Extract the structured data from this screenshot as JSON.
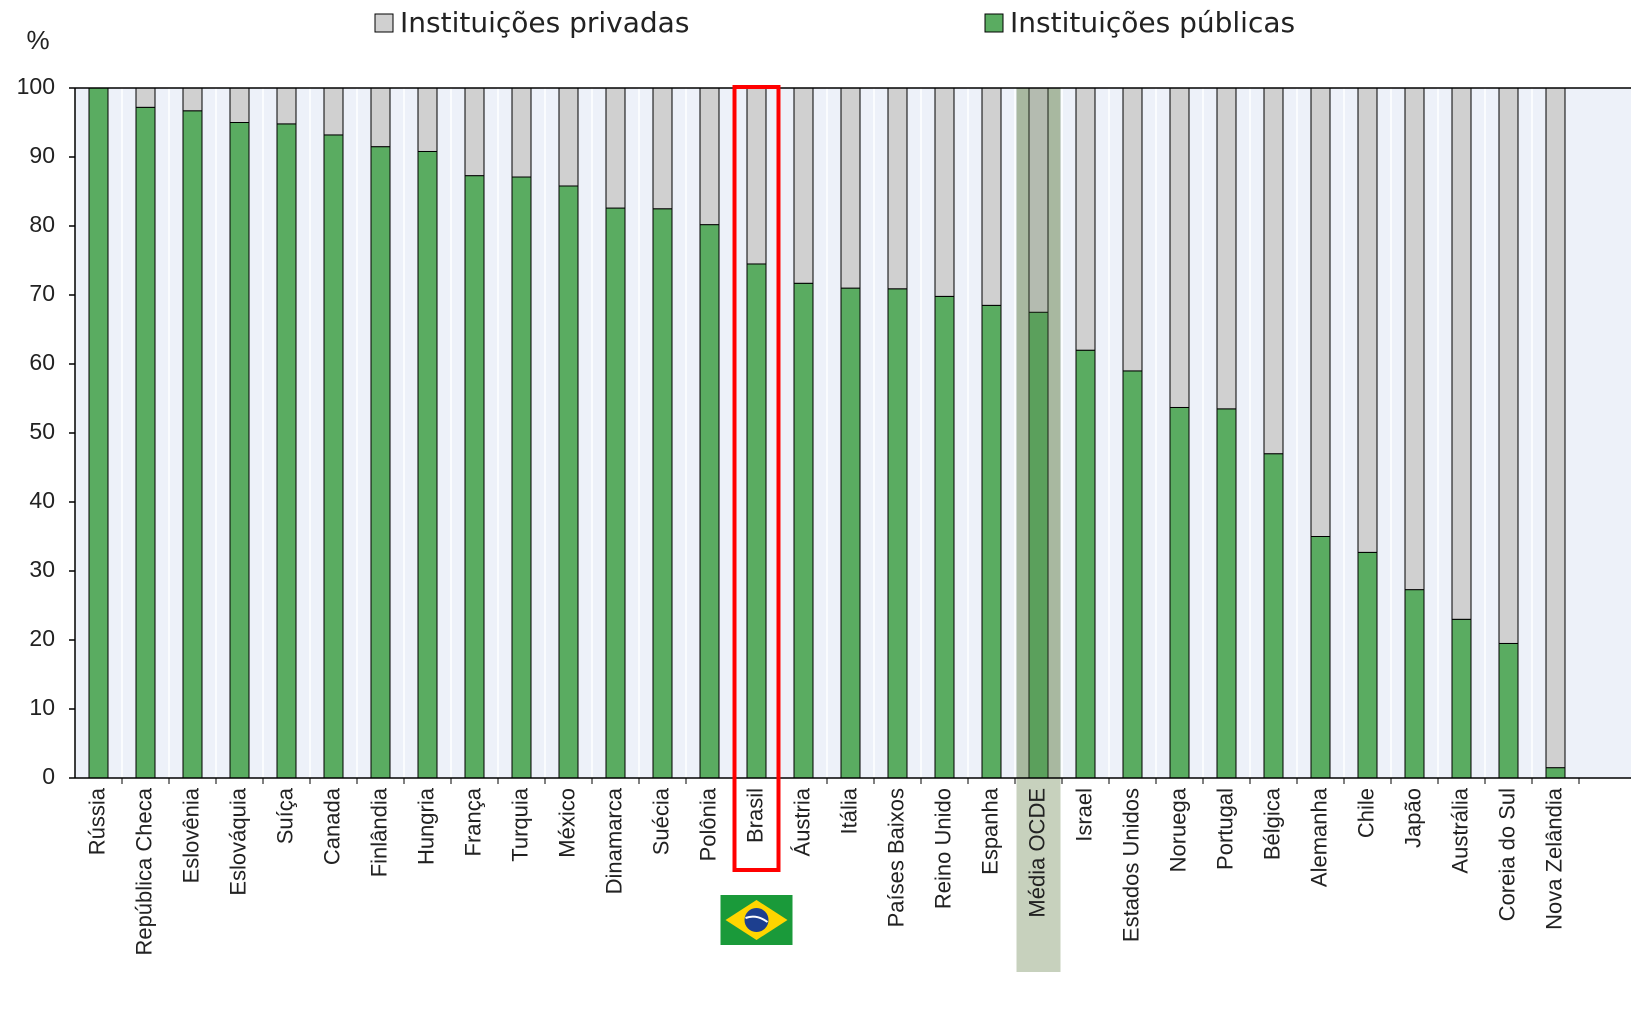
{
  "chart_data": {
    "type": "stacked_bar",
    "y_label": "%",
    "categories": [
      "Rússia",
      "República Checa",
      "Eslovênia",
      "Eslováquia",
      "Suíça",
      "Canada",
      "Finlândia",
      "Hungria",
      "França",
      "Turquia",
      "México",
      "Dinamarca",
      "Suécia",
      "Polônia",
      "Brasil",
      "Áustria",
      "Itália",
      "Países Baixos",
      "Reino Unido",
      "Espanha",
      "Média OCDE",
      "Israel",
      "Estados Unidos",
      "Noruega",
      "Portugal",
      "Bélgica",
      "Alemanha",
      "Chile",
      "Japão",
      "Austrália",
      "Coreia do Sul",
      "Nova Zelândia"
    ],
    "series": [
      {
        "name": "Instituições privadas",
        "color": "#d0d0d0",
        "values": [
          0,
          2.8,
          3.3,
          5,
          5.2,
          6.8,
          8.5,
          9.2,
          12.7,
          12.9,
          14.2,
          17.4,
          17.5,
          19.8,
          25.5,
          28.3,
          29,
          29.1,
          30.2,
          31.5,
          32.5,
          38,
          41,
          46.3,
          46.5,
          53,
          65,
          67.3,
          72.7,
          77,
          80.5,
          98.5
        ]
      },
      {
        "name": "Instituições públicas",
        "color": "#5aac61",
        "values": [
          100,
          97.2,
          96.7,
          95,
          94.8,
          93.2,
          91.5,
          90.8,
          87.3,
          87.1,
          85.8,
          82.6,
          82.5,
          80.2,
          74.5,
          71.7,
          71,
          70.9,
          69.8,
          68.5,
          67.5,
          62,
          59,
          53.7,
          53.5,
          47,
          35,
          32.7,
          27.3,
          23,
          19.5,
          1.5
        ]
      }
    ],
    "ylim": [
      0,
      100
    ],
    "yticks": [
      0,
      10,
      20,
      30,
      40,
      50,
      60,
      70,
      80,
      90,
      100
    ]
  }
}
